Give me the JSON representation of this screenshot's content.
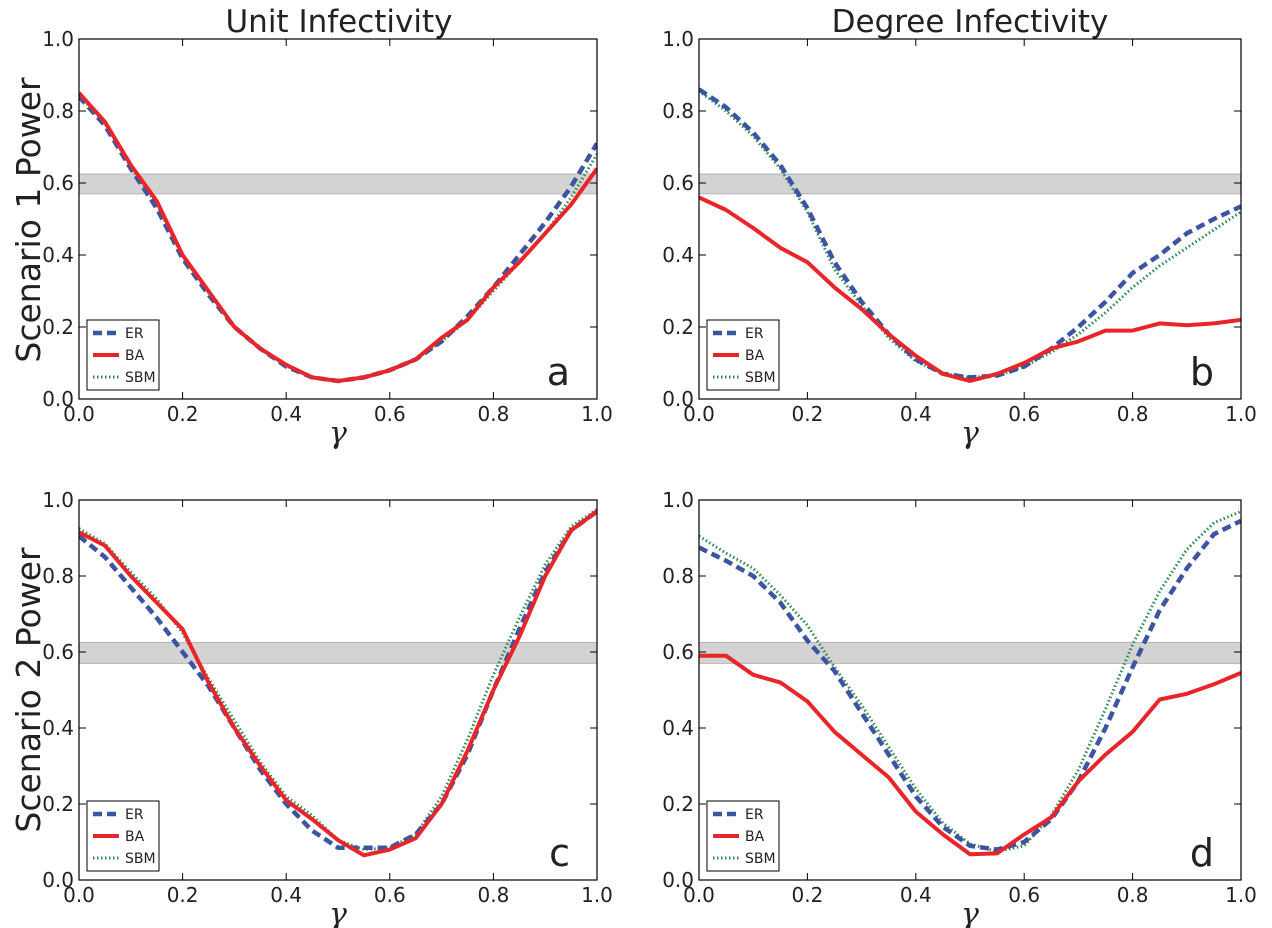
{
  "col_titles": [
    "Unit Infectivity",
    "Degree Infectivity"
  ],
  "row_labels": [
    "Scenario 1 Power",
    "Scenario 2 Power"
  ],
  "x_symbol": "γ",
  "colors": {
    "ER": "#3b55a3",
    "BA": "#e8262a",
    "SBM": "#2e8b4e",
    "band": "#d3d3d3",
    "band_edge": "#b5b5b5"
  },
  "chart_data": [
    {
      "type": "line",
      "panel": "a",
      "xlim": [
        0,
        1
      ],
      "ylim": [
        0,
        1
      ],
      "xticks": [
        "0.0",
        "0.2",
        "0.4",
        "0.6",
        "0.8",
        "1.0"
      ],
      "yticks": [
        "0.0",
        "0.2",
        "0.4",
        "0.6",
        "0.8",
        "1.0"
      ],
      "band": [
        0.57,
        0.625
      ],
      "legend_position": "lower-left",
      "x": [
        0.0,
        0.05,
        0.1,
        0.15,
        0.2,
        0.25,
        0.3,
        0.35,
        0.4,
        0.45,
        0.5,
        0.55,
        0.6,
        0.65,
        0.7,
        0.75,
        0.8,
        0.85,
        0.9,
        0.95,
        1.0
      ],
      "series": [
        {
          "name": "ER",
          "style": "dashed",
          "values": [
            0.84,
            0.76,
            0.64,
            0.53,
            0.39,
            0.29,
            0.2,
            0.14,
            0.09,
            0.06,
            0.05,
            0.06,
            0.08,
            0.11,
            0.16,
            0.23,
            0.31,
            0.4,
            0.49,
            0.59,
            0.71
          ]
        },
        {
          "name": "BA",
          "style": "solid",
          "values": [
            0.85,
            0.77,
            0.65,
            0.55,
            0.4,
            0.3,
            0.2,
            0.14,
            0.095,
            0.06,
            0.05,
            0.06,
            0.08,
            0.11,
            0.17,
            0.22,
            0.31,
            0.38,
            0.46,
            0.54,
            0.64
          ]
        },
        {
          "name": "SBM",
          "style": "dotted",
          "values": [
            0.845,
            0.765,
            0.645,
            0.54,
            0.395,
            0.295,
            0.2,
            0.14,
            0.092,
            0.06,
            0.05,
            0.06,
            0.078,
            0.11,
            0.16,
            0.22,
            0.3,
            0.38,
            0.46,
            0.56,
            0.68
          ]
        }
      ]
    },
    {
      "type": "line",
      "panel": "b",
      "xlim": [
        0,
        1
      ],
      "ylim": [
        0,
        1
      ],
      "xticks": [
        "0.0",
        "0.2",
        "0.4",
        "0.6",
        "0.8",
        "1.0"
      ],
      "yticks": [
        "0.0",
        "0.2",
        "0.4",
        "0.6",
        "0.8",
        "1.0"
      ],
      "band": [
        0.57,
        0.625
      ],
      "legend_position": "lower-left",
      "x": [
        0.0,
        0.05,
        0.1,
        0.15,
        0.2,
        0.25,
        0.3,
        0.35,
        0.4,
        0.45,
        0.5,
        0.55,
        0.6,
        0.65,
        0.7,
        0.75,
        0.8,
        0.85,
        0.9,
        0.95,
        1.0
      ],
      "series": [
        {
          "name": "ER",
          "style": "dashed",
          "values": [
            0.86,
            0.81,
            0.74,
            0.65,
            0.53,
            0.38,
            0.27,
            0.18,
            0.11,
            0.07,
            0.06,
            0.065,
            0.09,
            0.14,
            0.2,
            0.27,
            0.35,
            0.4,
            0.46,
            0.5,
            0.535
          ]
        },
        {
          "name": "BA",
          "style": "solid",
          "values": [
            0.56,
            0.525,
            0.475,
            0.42,
            0.38,
            0.31,
            0.25,
            0.18,
            0.12,
            0.07,
            0.05,
            0.07,
            0.1,
            0.14,
            0.16,
            0.19,
            0.19,
            0.21,
            0.205,
            0.21,
            0.22
          ]
        },
        {
          "name": "SBM",
          "style": "dotted",
          "values": [
            0.855,
            0.8,
            0.73,
            0.64,
            0.52,
            0.36,
            0.26,
            0.17,
            0.105,
            0.07,
            0.06,
            0.065,
            0.09,
            0.13,
            0.18,
            0.24,
            0.31,
            0.37,
            0.42,
            0.47,
            0.52
          ]
        }
      ]
    },
    {
      "type": "line",
      "panel": "c",
      "xlim": [
        0,
        1
      ],
      "ylim": [
        0,
        1
      ],
      "xticks": [
        "0.0",
        "0.2",
        "0.4",
        "0.6",
        "0.8",
        "1.0"
      ],
      "yticks": [
        "0.0",
        "0.2",
        "0.4",
        "0.6",
        "0.8",
        "1.0"
      ],
      "band": [
        0.57,
        0.625
      ],
      "legend_position": "lower-left",
      "x": [
        0.0,
        0.05,
        0.1,
        0.15,
        0.2,
        0.25,
        0.3,
        0.35,
        0.4,
        0.45,
        0.5,
        0.55,
        0.6,
        0.65,
        0.7,
        0.75,
        0.8,
        0.85,
        0.9,
        0.95,
        1.0
      ],
      "series": [
        {
          "name": "ER",
          "style": "dashed",
          "values": [
            0.905,
            0.85,
            0.77,
            0.69,
            0.6,
            0.51,
            0.4,
            0.29,
            0.2,
            0.13,
            0.085,
            0.085,
            0.085,
            0.12,
            0.2,
            0.33,
            0.5,
            0.66,
            0.81,
            0.92,
            0.97
          ]
        },
        {
          "name": "BA",
          "style": "solid",
          "values": [
            0.915,
            0.88,
            0.8,
            0.73,
            0.66,
            0.52,
            0.4,
            0.3,
            0.21,
            0.16,
            0.105,
            0.065,
            0.08,
            0.11,
            0.2,
            0.34,
            0.5,
            0.64,
            0.8,
            0.92,
            0.97
          ]
        },
        {
          "name": "SBM",
          "style": "dotted",
          "values": [
            0.925,
            0.885,
            0.81,
            0.74,
            0.65,
            0.53,
            0.42,
            0.31,
            0.22,
            0.17,
            0.105,
            0.08,
            0.085,
            0.12,
            0.22,
            0.37,
            0.54,
            0.69,
            0.83,
            0.93,
            0.975
          ]
        }
      ]
    },
    {
      "type": "line",
      "panel": "d",
      "xlim": [
        0,
        1
      ],
      "ylim": [
        0,
        1
      ],
      "xticks": [
        "0.0",
        "0.2",
        "0.4",
        "0.6",
        "0.8",
        "1.0"
      ],
      "yticks": [
        "0.0",
        "0.2",
        "0.4",
        "0.6",
        "0.8",
        "1.0"
      ],
      "band": [
        0.57,
        0.625
      ],
      "legend_position": "lower-left",
      "x": [
        0.0,
        0.05,
        0.1,
        0.15,
        0.2,
        0.25,
        0.3,
        0.35,
        0.4,
        0.45,
        0.5,
        0.55,
        0.6,
        0.65,
        0.7,
        0.75,
        0.8,
        0.85,
        0.9,
        0.95,
        1.0
      ],
      "series": [
        {
          "name": "ER",
          "style": "dashed",
          "values": [
            0.875,
            0.84,
            0.8,
            0.73,
            0.63,
            0.55,
            0.44,
            0.33,
            0.22,
            0.14,
            0.09,
            0.08,
            0.1,
            0.16,
            0.26,
            0.4,
            0.56,
            0.71,
            0.82,
            0.91,
            0.945
          ]
        },
        {
          "name": "BA",
          "style": "solid",
          "values": [
            0.59,
            0.59,
            0.54,
            0.52,
            0.47,
            0.39,
            0.33,
            0.27,
            0.18,
            0.12,
            0.068,
            0.07,
            0.12,
            0.165,
            0.26,
            0.33,
            0.39,
            0.475,
            0.49,
            0.515,
            0.545
          ]
        },
        {
          "name": "SBM",
          "style": "dotted",
          "values": [
            0.905,
            0.86,
            0.82,
            0.75,
            0.67,
            0.56,
            0.46,
            0.35,
            0.24,
            0.15,
            0.095,
            0.075,
            0.09,
            0.17,
            0.29,
            0.45,
            0.62,
            0.76,
            0.87,
            0.94,
            0.97
          ]
        }
      ]
    }
  ]
}
